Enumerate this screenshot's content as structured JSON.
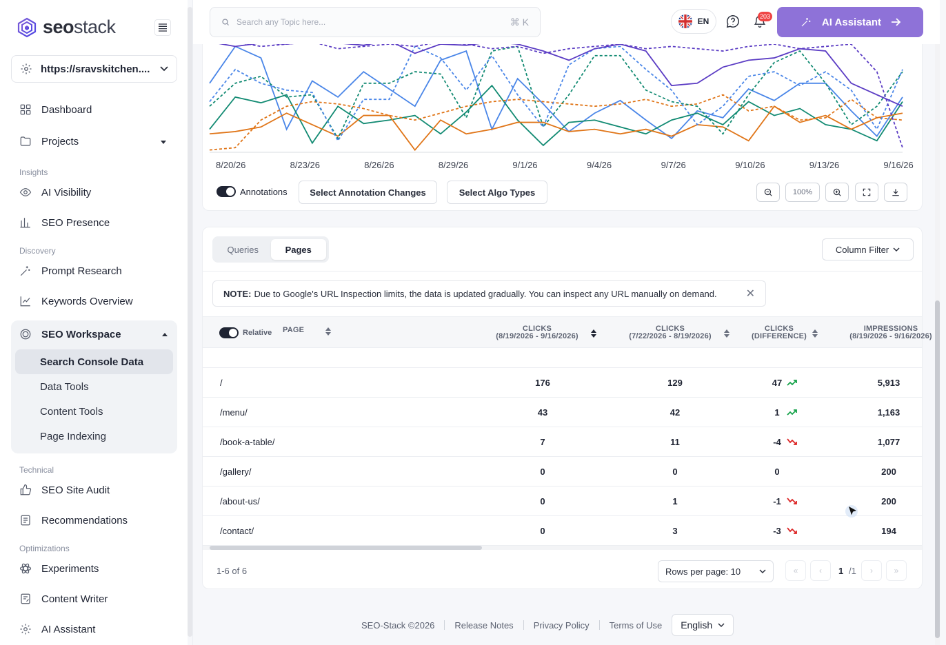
{
  "brand": {
    "name_bold": "seo",
    "name_light": "stack"
  },
  "site_selector": {
    "value": "https://sravskitchen...."
  },
  "nav": {
    "dashboard": "Dashboard",
    "projects": "Projects",
    "insights_label": "Insights",
    "ai_visibility": "AI Visibility",
    "seo_presence": "SEO Presence",
    "discovery_label": "Discovery",
    "prompt_research": "Prompt Research",
    "keywords_overview": "Keywords Overview",
    "seo_workspace": "SEO Workspace",
    "workspace_items": [
      "Search Console Data",
      "Data Tools",
      "Content Tools",
      "Page Indexing"
    ],
    "technical_label": "Technical",
    "seo_site_audit": "SEO Site Audit",
    "recommendations": "Recommendations",
    "optimizations_label": "Optimizations",
    "experiments": "Experiments",
    "content_writer": "Content Writer",
    "ai_assistant": "AI Assistant"
  },
  "topbar": {
    "search_placeholder": "Search any Topic here...",
    "search_shortcut": "⌘ K",
    "language": "EN",
    "notification_count": "203",
    "ai_button": "AI Assistant"
  },
  "chart": {
    "x_ticks": [
      "8/20/26",
      "8/23/26",
      "8/26/26",
      "8/29/26",
      "9/1/26",
      "9/4/26",
      "9/7/26",
      "9/10/26",
      "9/13/26",
      "9/16/26"
    ],
    "annotations_label": "Annotations",
    "select_annotation_changes": "Select Annotation Changes",
    "select_algo_types": "Select Algo Types",
    "zoom_level": "100%",
    "colors": {
      "purple": "#5b3cc4",
      "blue": "#4a86e8",
      "teal": "#118a72",
      "orange": "#e07518"
    }
  },
  "chart_data": {
    "type": "line",
    "x": [
      "8/20/26",
      "8/21/26",
      "8/22/26",
      "8/23/26",
      "8/24/26",
      "8/25/26",
      "8/26/26",
      "8/27/26",
      "8/28/26",
      "8/29/26",
      "8/30/26",
      "8/31/26",
      "9/1/26",
      "9/2/26",
      "9/3/26",
      "9/4/26",
      "9/5/26",
      "9/6/26",
      "9/7/26",
      "9/8/26",
      "9/9/26",
      "9/10/26",
      "9/11/26",
      "9/12/26",
      "9/13/26",
      "9/14/26",
      "9/15/26",
      "9/16/26"
    ],
    "series": [
      {
        "color": "#4a86e8",
        "style": "solid",
        "values": [
          60,
          92,
          82,
          20,
          62,
          48,
          70,
          55,
          40,
          80,
          88,
          20,
          64,
          42,
          18,
          34,
          45,
          28,
          12,
          36,
          30,
          55,
          45,
          60,
          60,
          36,
          14,
          48
        ]
      },
      {
        "color": "#118a72",
        "style": "solid",
        "values": [
          20,
          48,
          43,
          50,
          8,
          40,
          25,
          28,
          32,
          16,
          35,
          58,
          28,
          6,
          26,
          28,
          22,
          16,
          28,
          34,
          24,
          44,
          32,
          38,
          24,
          20,
          10,
          44
        ]
      },
      {
        "color": "#e07518",
        "style": "solid",
        "values": [
          16,
          18,
          22,
          34,
          24,
          14,
          32,
          32,
          2,
          28,
          16,
          20,
          26,
          26,
          18,
          20,
          16,
          20,
          14,
          24,
          22,
          10,
          40,
          26,
          32,
          20,
          30,
          34
        ]
      },
      {
        "color": "#e07518",
        "style": "dashed",
        "values": [
          2,
          4,
          28,
          40,
          44,
          42,
          38,
          32,
          28,
          34,
          40,
          44,
          46,
          44,
          42,
          40,
          42,
          46,
          40,
          42,
          50,
          36,
          40,
          28,
          30,
          46,
          30,
          28
        ]
      },
      {
        "color": "#118a72",
        "style": "dashed",
        "values": [
          40,
          60,
          66,
          48,
          50,
          12,
          60,
          60,
          70,
          68,
          30,
          88,
          92,
          22,
          50,
          84,
          84,
          54,
          44,
          40,
          16,
          50,
          78,
          88,
          60,
          24,
          40,
          70
        ]
      },
      {
        "color": "#4a86e8",
        "style": "dashed",
        "values": [
          44,
          72,
          60,
          54,
          52,
          10,
          46,
          46,
          92,
          82,
          54,
          84,
          50,
          22,
          76,
          90,
          92,
          72,
          54,
          24,
          40,
          66,
          70,
          58,
          70,
          54,
          20,
          72
        ]
      },
      {
        "color": "#5b3cc4",
        "style": "solid",
        "values": [
          96,
          92,
          95,
          94,
          96,
          95,
          93,
          97,
          86,
          94,
          93,
          96,
          94,
          88,
          80,
          90,
          94,
          88,
          58,
          60,
          74,
          80,
          82,
          90,
          88,
          60,
          50,
          40
        ]
      },
      {
        "color": "#5b3cc4",
        "style": "dashed",
        "values": [
          96,
          96,
          92,
          94,
          96,
          90,
          92,
          94,
          92,
          96,
          94,
          90,
          92,
          86,
          90,
          92,
          94,
          90,
          92,
          90,
          88,
          92,
          94,
          90,
          92,
          94,
          70,
          4
        ]
      }
    ],
    "ylim": [
      0,
      100
    ]
  },
  "table": {
    "tabs": [
      "Queries",
      "Pages"
    ],
    "column_filter": "Column Filter",
    "note_bold": "NOTE:",
    "note_text": "Due to Google's URL Inspection limits, the data is updated gradually. You can inspect any URL manually on demand.",
    "relative_label": "Relative",
    "headers": {
      "page": "PAGE",
      "clicks_current": [
        "CLICKS",
        "(8/19/2026 - 9/16/2026)"
      ],
      "clicks_previous": [
        "CLICKS",
        "(7/22/2026 - 8/19/2026)"
      ],
      "clicks_diff": [
        "CLICKS",
        "(DIFFERENCE)"
      ],
      "impressions": [
        "IMPRESSIONS",
        "(8/19/2026 - 9/16/2026)"
      ]
    },
    "rows": [
      {
        "page": "/",
        "clicks_current": "176",
        "clicks_previous": "129",
        "diff": "47",
        "trend": "up",
        "impressions": "5,913"
      },
      {
        "page": "/menu/",
        "clicks_current": "43",
        "clicks_previous": "42",
        "diff": "1",
        "trend": "up",
        "impressions": "1,163"
      },
      {
        "page": "/book-a-table/",
        "clicks_current": "7",
        "clicks_previous": "11",
        "diff": "-4",
        "trend": "down",
        "impressions": "1,077"
      },
      {
        "page": "/gallery/",
        "clicks_current": "0",
        "clicks_previous": "0",
        "diff": "0",
        "trend": "none",
        "impressions": "200"
      },
      {
        "page": "/about-us/",
        "clicks_current": "0",
        "clicks_previous": "1",
        "diff": "-1",
        "trend": "down",
        "impressions": "200"
      },
      {
        "page": "/contact/",
        "clicks_current": "0",
        "clicks_previous": "3",
        "diff": "-3",
        "trend": "down",
        "impressions": "194"
      }
    ],
    "range_text": "1-6 of 6",
    "rows_per_page": "Rows per page: 10",
    "current_page": "1",
    "total_pages": "/1"
  },
  "footer": {
    "copyright": "SEO-Stack ©2026",
    "release_notes": "Release Notes",
    "privacy_policy": "Privacy Policy",
    "terms": "Terms of Use",
    "language": "English"
  }
}
